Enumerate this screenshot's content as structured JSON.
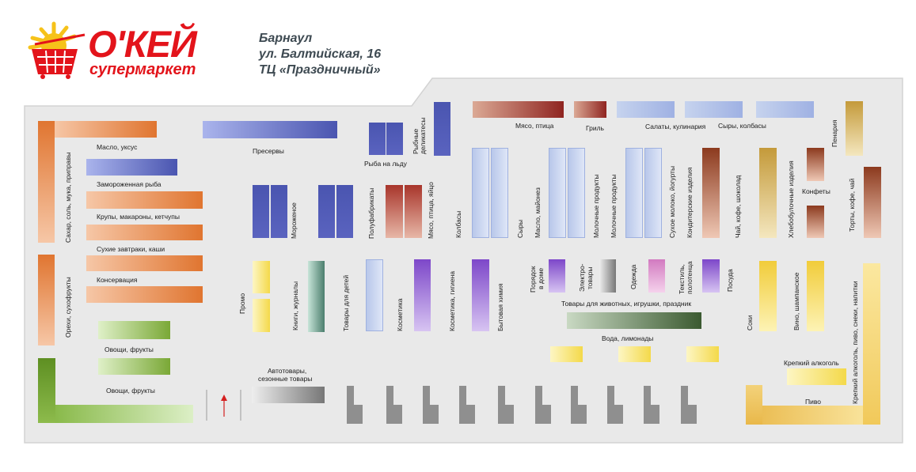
{
  "logo": {
    "brand": "О'КЕЙ",
    "tagline": "супермаркет"
  },
  "address": {
    "city": "Барнаул",
    "street": "ул. Балтийская, 16",
    "mall": "ТЦ «Праздничный»"
  },
  "departments": {
    "maslo": "Масло, уксус",
    "sahar": "Сахар, соль, мука, приправы",
    "zamorozh_ryba": "Замороженная рыба",
    "krupy": "Крупы, макароны, кетчупы",
    "suhie_zavtraki": "Сухие завтраки, каши",
    "konservaciya": "Консервация",
    "orehi": "Орехи, сухофрукты",
    "ovoschi_1": "Овощи, фрукты",
    "ovoschi_2": "Овощи, фрукты",
    "preservy": "Пресервы",
    "ryba_na_ldu": "Рыба на льду",
    "rybnye_delikatesy": "Рыбные деликатесы",
    "morozhenoe": "Мороженое",
    "polufabrikaty": "Полуфабрикаты",
    "myaso_ptica_yaico": "Мясо, птица, яйцо",
    "myaso_ptica": "Мясо, птица",
    "gril": "Гриль",
    "salaty": "Салаты, кулинария",
    "syry_kolbasy": "Сыры, колбасы",
    "penariya": "Пенария",
    "kolbasy": "Колбасы",
    "syry": "Сыры",
    "maslo_maionez": "Масло, майонез",
    "molochnye_1": "Молочные продукты",
    "molochnye_2": "Молочные продукты",
    "suhoe_moloko": "Сухое молоко, йогурты",
    "konditerskie": "Кондитерские изделия",
    "chai_kofe_shokolad": "Чай, кофе, шоколад",
    "hlebobulochnye": "Хлебобулочные изделия",
    "konfety": "Конфеты",
    "torty": "Торты, кофе, чай",
    "promo": "Промо",
    "knigi": "Книги, журналы",
    "tovary_dlya_detey": "Товары для детей",
    "kosmetika": "Косметика",
    "kosmetika_gigiena": "Косметика, гигиена",
    "bytovaya_himiya": "Бытовая химия",
    "poryadok_1": "Порядок",
    "poryadok_2": "в доме",
    "elektro_1": "Электро-",
    "elektro_2": "товары",
    "odezhda": "Одежда",
    "tekstil_1": "Текстиль,",
    "tekstil_2": "полотенца",
    "posuda": "Посуда",
    "tovary_dlya_zhivotnyh": "Товары для животных, игрушки, праздник",
    "voda": "Вода, лимонады",
    "avtotovary_1": "Автотовары,",
    "avtotovary_2": "сезонные товары",
    "soki": "Соки",
    "vino": "Вино, шампанское",
    "krepkiy_alkogol": "Крепкий алкоголь",
    "krepkiy_alkogol_pivo": "Крепкий алкоголь, пиво, снеки, напитки",
    "pivo": "Пиво"
  },
  "colors": {
    "floor": "#e9e9e9",
    "floor_border": "#d3d3d3",
    "logo_red": "#e3141b",
    "logo_yellow": "#f6c21a",
    "address_text": "#3e4a52",
    "checkout": "#8f8f8f"
  },
  "icons": {
    "entrance_arrow": "arrow-up-icon"
  }
}
